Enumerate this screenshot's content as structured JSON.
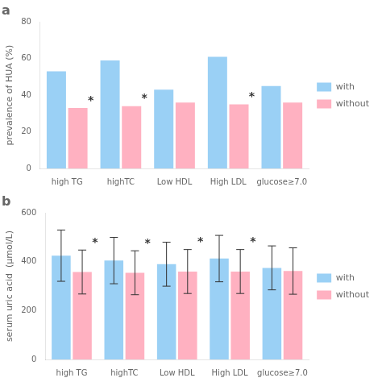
{
  "chart_data": [
    {
      "type": "bar",
      "title": "a",
      "categories": [
        "high TG",
        "highTC",
        "Low HDL",
        "High LDL",
        "glucose≥7.0"
      ],
      "series": [
        {
          "name": "with",
          "values": [
            53,
            59,
            43,
            61,
            45
          ]
        },
        {
          "name": "without",
          "values": [
            33,
            34,
            36,
            35,
            36
          ]
        }
      ],
      "ylabel": "prevalence of HUA (%)",
      "ylim": [
        0,
        80
      ],
      "yticks": [
        0,
        20,
        40,
        60,
        80
      ],
      "annotations": [
        {
          "text": "*",
          "category": "high TG",
          "series": "without"
        },
        {
          "text": "*",
          "category": "highTC",
          "series": "without"
        },
        {
          "text": "*",
          "category": "High LDL",
          "series": "without"
        }
      ],
      "grid": false,
      "legend": "right"
    },
    {
      "type": "bar",
      "title": "b",
      "categories": [
        "high TG",
        "highTC",
        "Low HDL",
        "High LDL",
        "glucose≥7.0"
      ],
      "series": [
        {
          "name": "with",
          "values": [
            425,
            405,
            390,
            413,
            375
          ],
          "errors": [
            105,
            95,
            90,
            95,
            90
          ]
        },
        {
          "name": "without",
          "values": [
            358,
            355,
            360,
            360,
            362
          ],
          "errors": [
            90,
            90,
            90,
            90,
            95
          ]
        }
      ],
      "ylabel": "serum uric acid  (μmol/L)",
      "ylim": [
        0,
        600
      ],
      "yticks": [
        0,
        200,
        400,
        600
      ],
      "annotations": [
        {
          "text": "*",
          "category": "high TG",
          "series": "without"
        },
        {
          "text": "*",
          "category": "highTC",
          "series": "without"
        },
        {
          "text": "*",
          "category": "Low HDL",
          "series": "without"
        },
        {
          "text": "*",
          "category": "High LDL",
          "series": "without"
        }
      ],
      "grid": false,
      "legend": "right"
    }
  ]
}
